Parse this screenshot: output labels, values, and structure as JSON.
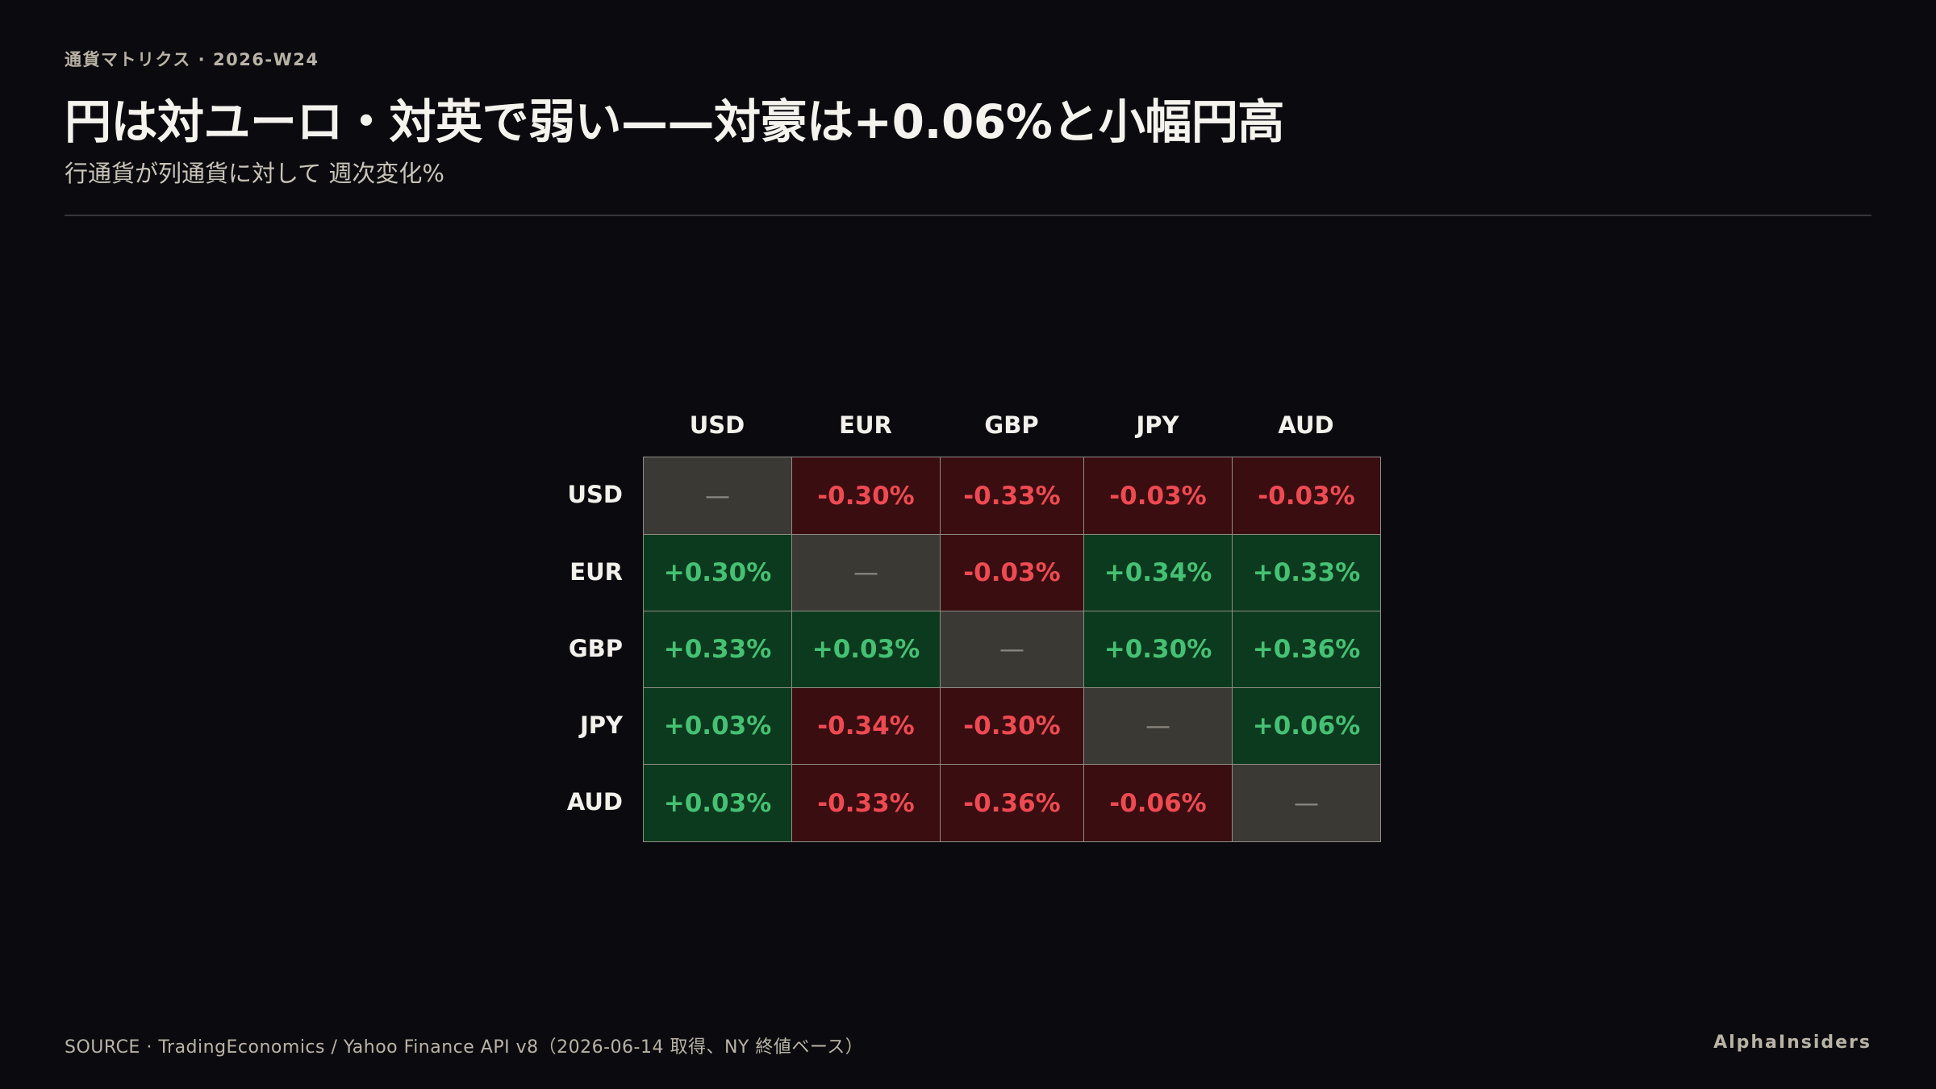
{
  "header": {
    "kicker": "通貨マトリクス · 2026-W24",
    "headline": "円は対ユーロ・対英で弱い——対豪は+0.06%と小幅円高",
    "subtitle": "行通貨が列通貨に対して 週次変化%"
  },
  "chart_data": {
    "type": "heatmap",
    "title": "円は対ユーロ・対英で弱い——対豪は+0.06%と小幅円高",
    "subtitle": "行通貨が列通貨に対して 週次変化%",
    "rows": [
      "USD",
      "EUR",
      "GBP",
      "JPY",
      "AUD"
    ],
    "columns": [
      "USD",
      "EUR",
      "GBP",
      "JPY",
      "AUD"
    ],
    "self_label": "—",
    "values": [
      [
        null,
        -0.3,
        -0.33,
        -0.03,
        -0.03
      ],
      [
        0.3,
        null,
        -0.03,
        0.34,
        0.33
      ],
      [
        0.33,
        0.03,
        null,
        0.3,
        0.36
      ],
      [
        0.03,
        -0.34,
        -0.3,
        null,
        0.06
      ],
      [
        0.03,
        -0.33,
        -0.36,
        -0.06,
        null
      ]
    ],
    "labels": [
      [
        "—",
        "-0.30%",
        "-0.33%",
        "-0.03%",
        "-0.03%"
      ],
      [
        "+0.30%",
        "—",
        "-0.03%",
        "+0.34%",
        "+0.33%"
      ],
      [
        "+0.33%",
        "+0.03%",
        "—",
        "+0.30%",
        "+0.36%"
      ],
      [
        "+0.03%",
        "-0.34%",
        "-0.30%",
        "—",
        "+0.06%"
      ],
      [
        "+0.03%",
        "-0.33%",
        "-0.36%",
        "-0.06%",
        "—"
      ]
    ],
    "colors": {
      "positive_fill": "#0c3a1e",
      "positive_text": "#45c173",
      "negative_fill": "#3a0d11",
      "negative_text": "#ef4a52",
      "self_fill": "#3a3934",
      "self_text": "#8a8780"
    }
  },
  "footer": {
    "source": "SOURCE · TradingEconomics / Yahoo Finance API v8（2026-06-14 取得、NY 終値ベース）",
    "brand": "AlphaInsiders"
  }
}
